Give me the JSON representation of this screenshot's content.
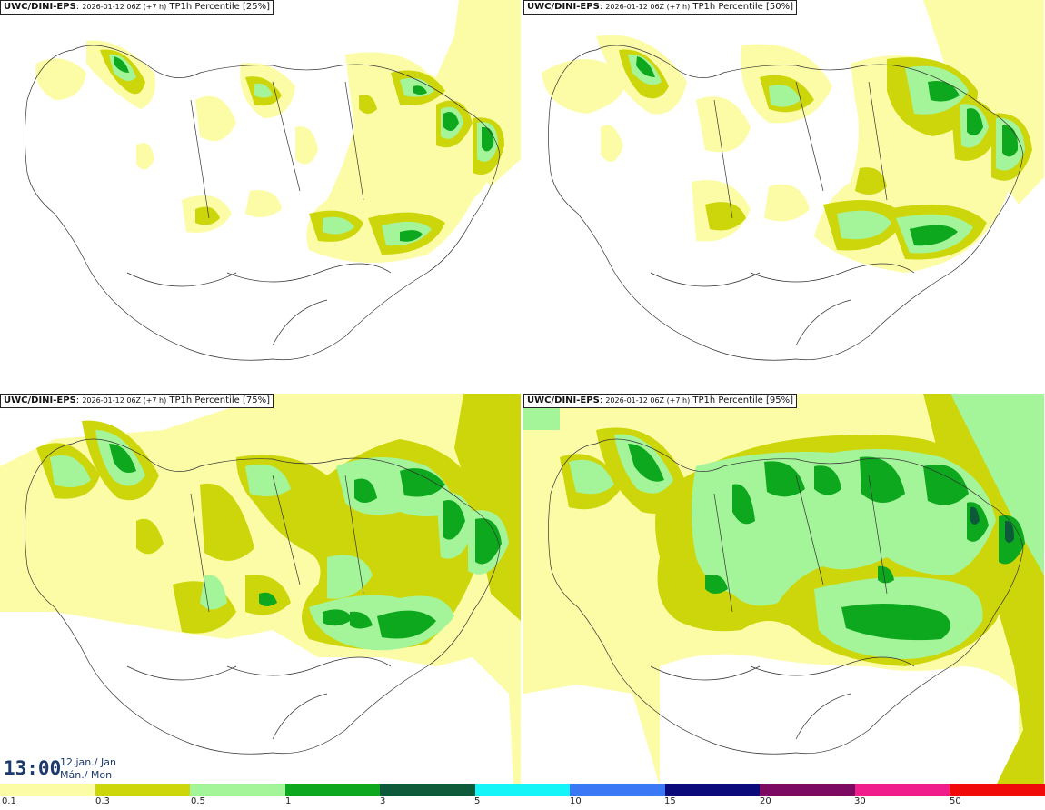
{
  "panels": [
    {
      "model": "UWC/DINI-EPS",
      "info": "2026-01-12 06Z (+7 h)",
      "label": "TP1h Percentile [25%]"
    },
    {
      "model": "UWC/DINI-EPS",
      "info": "2026-01-12 06Z (+7 h)",
      "label": "TP1h Percentile [50%]"
    },
    {
      "model": "UWC/DINI-EPS",
      "info": "2026-01-12 06Z (+7 h)",
      "label": "TP1h Percentile [75%]"
    },
    {
      "model": "UWC/DINI-EPS",
      "info": "2026-01-12 06Z (+7 h)",
      "label": "TP1h Percentile [95%]"
    }
  ],
  "valid_time": {
    "time": "13:00",
    "date": "12.jan./ Jan",
    "day": "Mán./ Mon"
  },
  "colorscale": {
    "colors": [
      "#fdfca6",
      "#cdd60b",
      "#a4f59a",
      "#0da81e",
      "#0c5a3a",
      "#13f5f6",
      "#3b78f5",
      "#0a0a7a",
      "#7d0a62",
      "#f01e8c",
      "#f00a0a"
    ],
    "ticks": [
      "0.1",
      "0.3",
      "0.5",
      "1",
      "3",
      "5",
      "10",
      "15",
      "20",
      "30",
      "50"
    ]
  },
  "legend": {
    "t0": "0.1",
    "t1": "0.3",
    "t2": "0.5",
    "t3": "1",
    "t4": "3",
    "t5": "5",
    "t6": "10",
    "t7": "15",
    "t8": "20",
    "t9": "30",
    "t10": "50"
  }
}
